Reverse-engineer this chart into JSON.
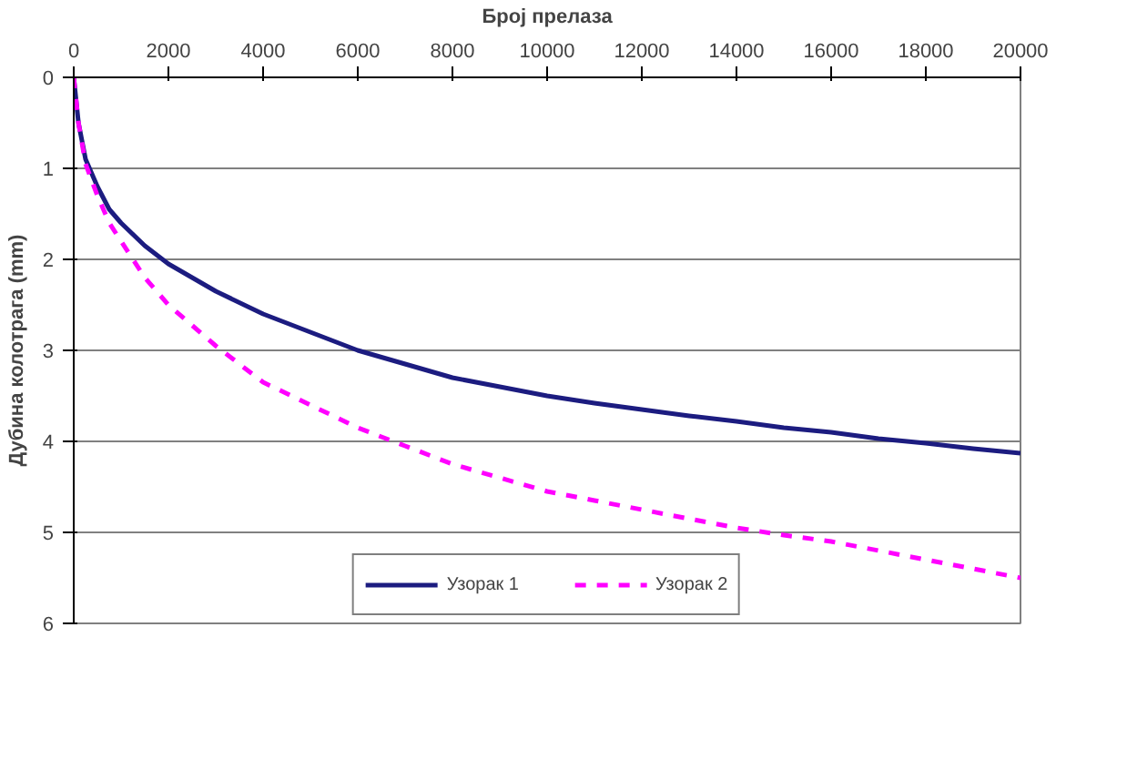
{
  "chart_data": {
    "type": "line",
    "xlabel": "Број прелаза",
    "ylabel": "Дубина колотрага (mm)",
    "x": [
      0,
      100,
      250,
      500,
      750,
      1000,
      1500,
      2000,
      3000,
      4000,
      5000,
      6000,
      7000,
      8000,
      9000,
      10000,
      11000,
      12000,
      13000,
      14000,
      15000,
      16000,
      17000,
      18000,
      19000,
      20000
    ],
    "series": [
      {
        "name": "Узорак 1",
        "color": "#1c1c80",
        "line_style": "solid",
        "values": [
          0.0,
          0.5,
          0.9,
          1.2,
          1.45,
          1.6,
          1.85,
          2.05,
          2.35,
          2.6,
          2.8,
          3.0,
          3.15,
          3.3,
          3.4,
          3.5,
          3.58,
          3.65,
          3.72,
          3.78,
          3.85,
          3.9,
          3.97,
          4.02,
          4.08,
          4.13
        ]
      },
      {
        "name": "Узорак 2",
        "color": "#ff00ff",
        "line_style": "dashed",
        "values": [
          0.0,
          0.5,
          0.95,
          1.3,
          1.6,
          1.8,
          2.2,
          2.5,
          2.95,
          3.35,
          3.6,
          3.85,
          4.05,
          4.25,
          4.4,
          4.55,
          4.65,
          4.75,
          4.85,
          4.95,
          5.03,
          5.1,
          5.2,
          5.3,
          5.4,
          5.5
        ]
      }
    ],
    "xlim": [
      0,
      20000
    ],
    "xticks": [
      0,
      2000,
      4000,
      6000,
      8000,
      10000,
      12000,
      14000,
      16000,
      18000,
      20000
    ],
    "ylim": [
      6,
      0
    ],
    "yticks": [
      0,
      1,
      2,
      3,
      4,
      5,
      6
    ],
    "grid": "y",
    "legend": "bottom",
    "marker": "none"
  }
}
